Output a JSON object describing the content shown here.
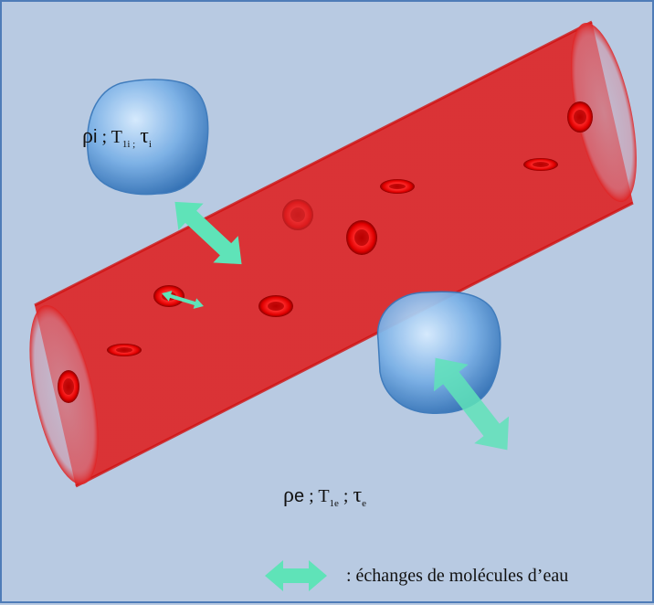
{
  "intracellular": {
    "rho": "ρ",
    "rho_sub": "i",
    "sep1": " ; ",
    "T": "T",
    "T_sub": "1i ;",
    "sep2": " ",
    "tau": "τ",
    "tau_sub": "i"
  },
  "extracellular": {
    "rho": "ρ",
    "rho_sub": "e",
    "sep1": " ; ",
    "T": "T",
    "T_sub": "1e",
    "sep2": " ; ",
    "tau": "τ",
    "tau_sub": "e"
  },
  "legend": {
    "text": ":  échanges de molécules d’eau"
  },
  "colors": {
    "background": "#b8cae2",
    "border": "#4f7cb8",
    "vessel": "#cc1f1f",
    "red_cell": "#ff1a1a",
    "cell_blue": "#5b9bd5",
    "exchange_arrow": "#5fe3b8"
  }
}
